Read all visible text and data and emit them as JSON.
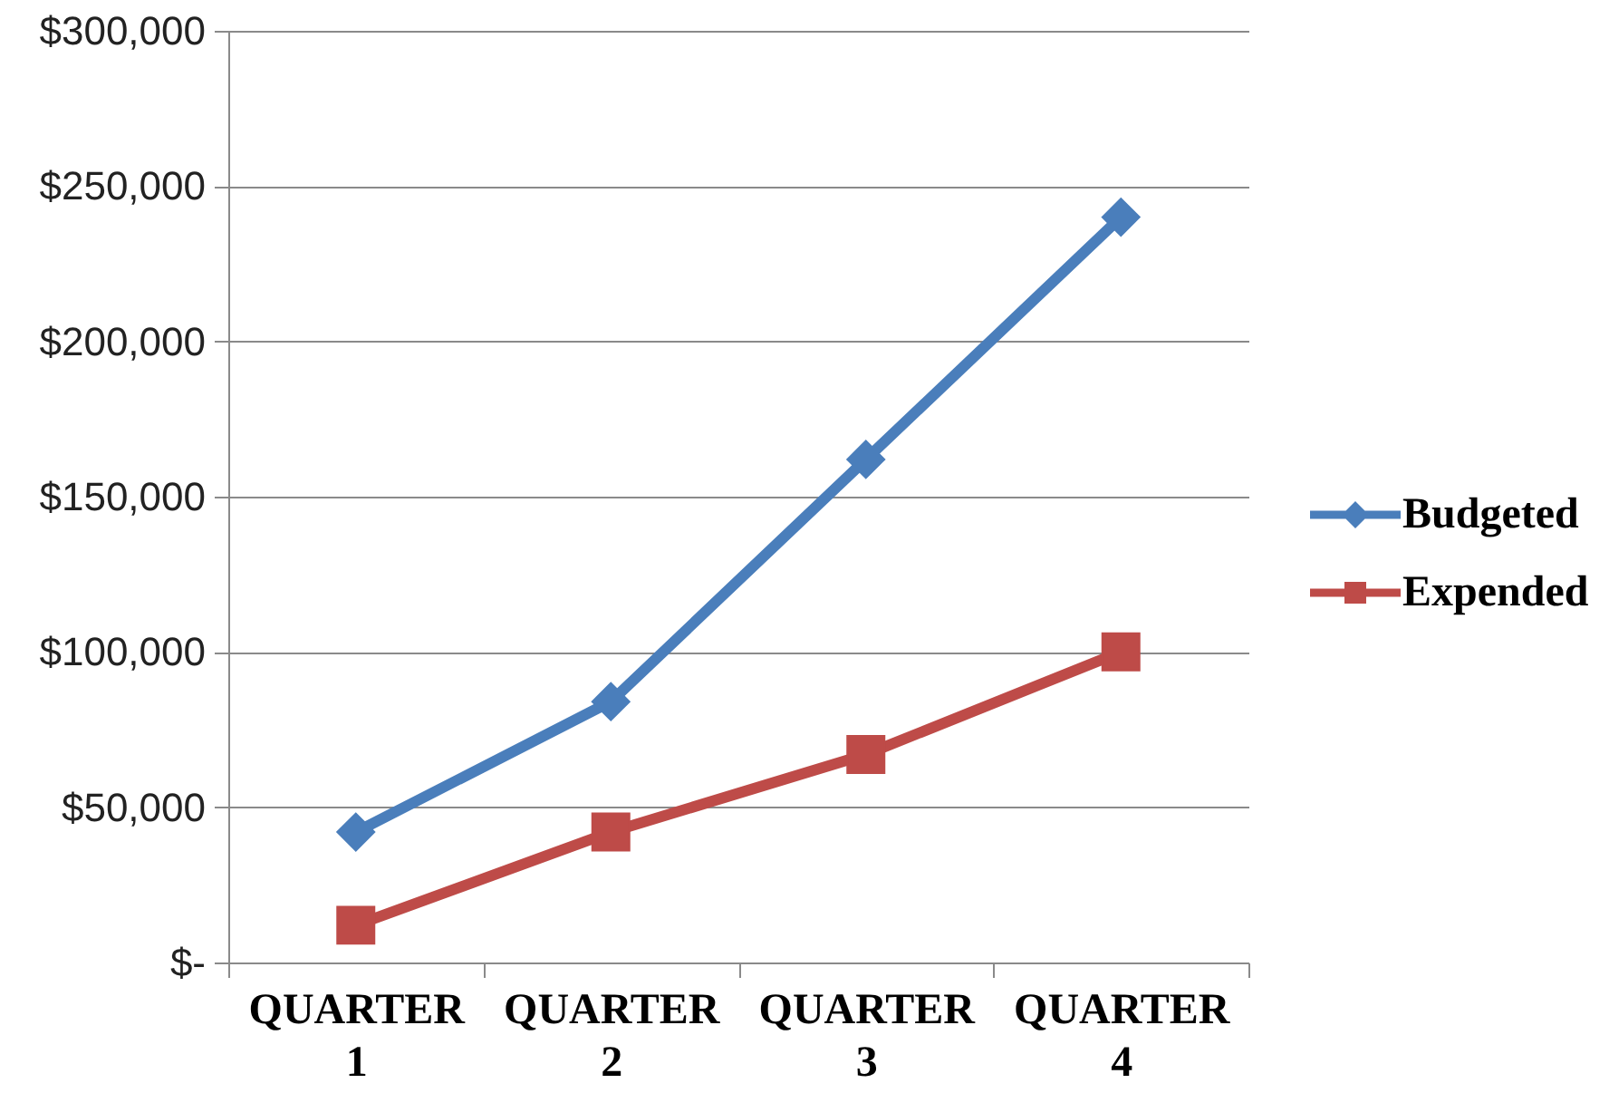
{
  "chart_data": {
    "type": "line",
    "categories": [
      "QUARTER 1",
      "QUARTER 2",
      "QUARTER 3",
      "QUARTER 4"
    ],
    "series": [
      {
        "name": "Budgeted",
        "color": "#4a7ebb",
        "marker": "diamond",
        "values": [
          42000,
          84000,
          162000,
          240000
        ]
      },
      {
        "name": "Expended",
        "color": "#be4b48",
        "marker": "square",
        "values": [
          12000,
          42000,
          67000,
          100000
        ]
      }
    ],
    "ylim": [
      0,
      300000
    ],
    "yticks": [
      {
        "value": 0,
        "label": "$-"
      },
      {
        "value": 50000,
        "label": "$50,000"
      },
      {
        "value": 100000,
        "label": "$100,000"
      },
      {
        "value": 150000,
        "label": "$150,000"
      },
      {
        "value": 200000,
        "label": "$200,000"
      },
      {
        "value": 250000,
        "label": "$250,000"
      },
      {
        "value": 300000,
        "label": "$300,000"
      }
    ],
    "grid": "y",
    "legend": "right",
    "line_style": "solid"
  }
}
